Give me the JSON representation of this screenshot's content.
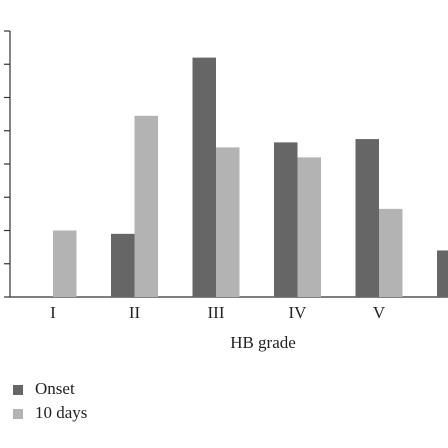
{
  "chart_data": {
    "type": "bar",
    "x_label": "HB grade",
    "categories": [
      "I",
      "II",
      "III",
      "IV",
      "V",
      null
    ],
    "series": [
      {
        "name": "Onset",
        "color": "#666666",
        "values": [
          null,
          1.9,
          7.2,
          4.65,
          4.75,
          1.4
        ]
      },
      {
        "name": "10 days",
        "color": "#b3b3b3",
        "values": [
          2.0,
          5.45,
          4.5,
          4.2,
          2.65,
          null
        ]
      }
    ],
    "ylim": [
      0,
      8
    ],
    "yticks": [
      0,
      1,
      2,
      3,
      4,
      5,
      6,
      7,
      8
    ],
    "grid": false,
    "legend": "bottom-left"
  }
}
